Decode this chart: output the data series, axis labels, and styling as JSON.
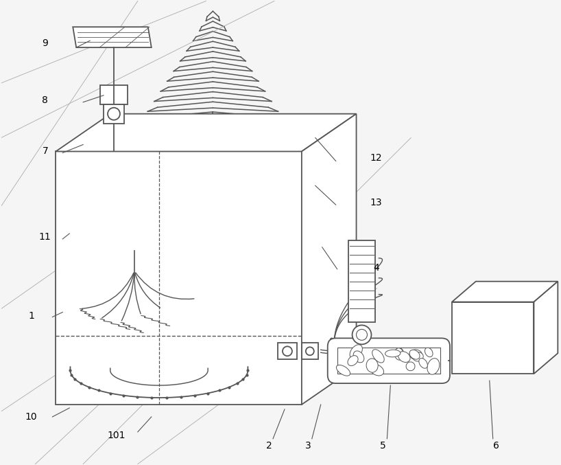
{
  "bg_color": "#f5f5f5",
  "line_color": "#555555",
  "lw": 1.3
}
